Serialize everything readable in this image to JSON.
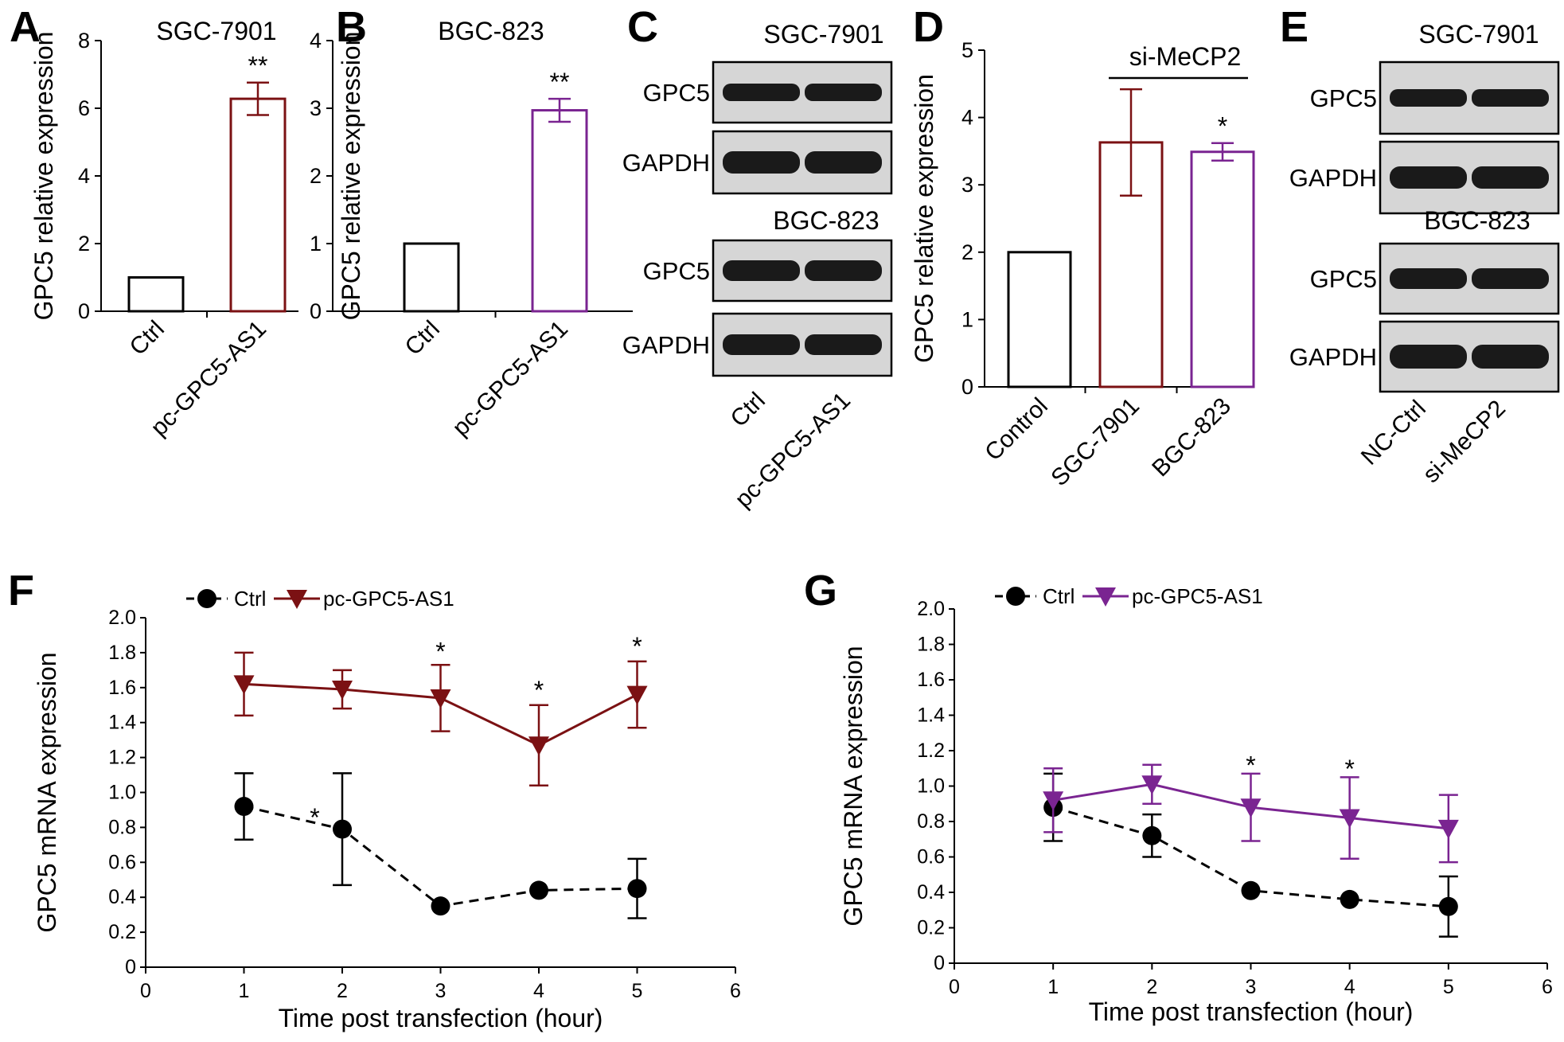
{
  "colors": {
    "ctrl": "#000000",
    "dark_red": "#7b1113",
    "purple": "#7a2491"
  },
  "chart_data": [
    {
      "panel": "A",
      "type": "bar",
      "title": "SGC-7901",
      "ylabel": "GPC5 relative expression",
      "ylim": [
        0,
        8
      ],
      "yticks": [
        "0",
        "2",
        "4",
        "6",
        "8"
      ],
      "categories": [
        "Ctrl",
        "pc-GPC5-AS1"
      ],
      "values": [
        1,
        6.28
      ],
      "errors": [
        0,
        0.48
      ],
      "significance": [
        "",
        "**"
      ],
      "bar_colors": [
        "#000000",
        "#7b1113"
      ]
    },
    {
      "panel": "B",
      "type": "bar",
      "title": "BGC-823",
      "ylabel": "GPC5 relative expression",
      "ylim": [
        0,
        4
      ],
      "yticks": [
        "0",
        "1",
        "2",
        "3",
        "4"
      ],
      "categories": [
        "Ctrl",
        "pc-GPC5-AS1"
      ],
      "values": [
        1,
        2.97
      ],
      "errors": [
        0,
        0.17
      ],
      "significance": [
        "",
        "**"
      ],
      "bar_colors": [
        "#000000",
        "#7a2491"
      ]
    },
    {
      "panel": "D",
      "type": "bar",
      "title": "si-MeCP2",
      "ylabel": "GPC5 relative expression",
      "ylim": [
        0,
        5
      ],
      "yticks": [
        "0",
        "1",
        "2",
        "3",
        "4",
        "5"
      ],
      "categories": [
        "Control",
        "SGC-7901",
        "BGC-823"
      ],
      "values": [
        2.0,
        3.63,
        3.49
      ],
      "errors": [
        0,
        0.79,
        0.13
      ],
      "significance": [
        "",
        "",
        "*"
      ],
      "bar_colors": [
        "#000000",
        "#7b1113",
        "#7a2491"
      ]
    },
    {
      "panel": "F",
      "type": "line",
      "xlabel": "Time post transfection (hour)",
      "ylabel": "GPC5 mRNA expression",
      "xlim": [
        0,
        6
      ],
      "ylim": [
        0,
        2.0
      ],
      "xticks": [
        "0",
        "1",
        "2",
        "3",
        "4",
        "5",
        "6"
      ],
      "yticks": [
        "0",
        "0.2",
        "0.4",
        "0.6",
        "0.8",
        "1.0",
        "1.2",
        "1.4",
        "1.6",
        "1.8",
        "2.0"
      ],
      "x": [
        1,
        2,
        3,
        4,
        5
      ],
      "series": [
        {
          "name": "Ctrl",
          "values": [
            0.92,
            0.79,
            0.35,
            0.44,
            0.45
          ],
          "errors": [
            0.19,
            0.32,
            0,
            0,
            0.17
          ],
          "color": "#000000",
          "marker": "circle",
          "dashed": true
        },
        {
          "name": "pc-GPC5-AS1",
          "values": [
            1.62,
            1.59,
            1.54,
            1.27,
            1.56
          ],
          "errors": [
            0.18,
            0.11,
            0.19,
            0.23,
            0.19
          ],
          "color": "#7b1113",
          "marker": "triangle-down",
          "dashed": false
        }
      ],
      "annotations": [
        {
          "text": "*",
          "x": 1.72,
          "y": 0.87
        },
        {
          "text": "*",
          "x": 3,
          "y": 1.82
        },
        {
          "text": "*",
          "x": 4,
          "y": 1.6
        },
        {
          "text": "*",
          "x": 5,
          "y": 1.85
        }
      ]
    },
    {
      "panel": "G",
      "type": "line",
      "xlabel": "Time post transfection (hour)",
      "ylabel": "GPC5 mRNA expression",
      "xlim": [
        0,
        6
      ],
      "ylim": [
        0,
        2.0
      ],
      "xticks": [
        "0",
        "1",
        "2",
        "3",
        "4",
        "5",
        "6"
      ],
      "yticks": [
        "0",
        "0.2",
        "0.4",
        "0.6",
        "0.8",
        "1.0",
        "1.2",
        "1.4",
        "1.6",
        "1.8",
        "2.0"
      ],
      "x": [
        1,
        2,
        3,
        4,
        5
      ],
      "series": [
        {
          "name": "Ctrl",
          "values": [
            0.88,
            0.72,
            0.41,
            0.36,
            0.32
          ],
          "errors": [
            0.19,
            0.12,
            0,
            0,
            0.17
          ],
          "color": "#000000",
          "marker": "circle",
          "dashed": true
        },
        {
          "name": "pc-GPC5-AS1",
          "values": [
            0.92,
            1.01,
            0.88,
            0.82,
            0.76
          ],
          "errors": [
            0.18,
            0.11,
            0.19,
            0.23,
            0.19
          ],
          "color": "#7a2491",
          "marker": "triangle-down",
          "dashed": false
        }
      ],
      "annotations": [
        {
          "text": "*",
          "x": 3,
          "y": 1.13
        },
        {
          "text": "*",
          "x": 4,
          "y": 1.11
        }
      ]
    }
  ],
  "blots": [
    {
      "panel": "C",
      "groups": [
        {
          "cell_line": "SGC-7901",
          "rows": [
            "GPC5",
            "GAPDH"
          ]
        },
        {
          "cell_line": "BGC-823",
          "rows": [
            "GPC5",
            "GAPDH"
          ]
        }
      ],
      "lanes": [
        "Ctrl",
        "pc-GPC5-AS1"
      ]
    },
    {
      "panel": "E",
      "groups": [
        {
          "cell_line": "SGC-7901",
          "rows": [
            "GPC5",
            "GAPDH"
          ]
        },
        {
          "cell_line": "BGC-823",
          "rows": [
            "GPC5",
            "GAPDH"
          ]
        }
      ],
      "lanes": [
        "NC-Ctrl",
        "si-MeCP2"
      ]
    }
  ]
}
